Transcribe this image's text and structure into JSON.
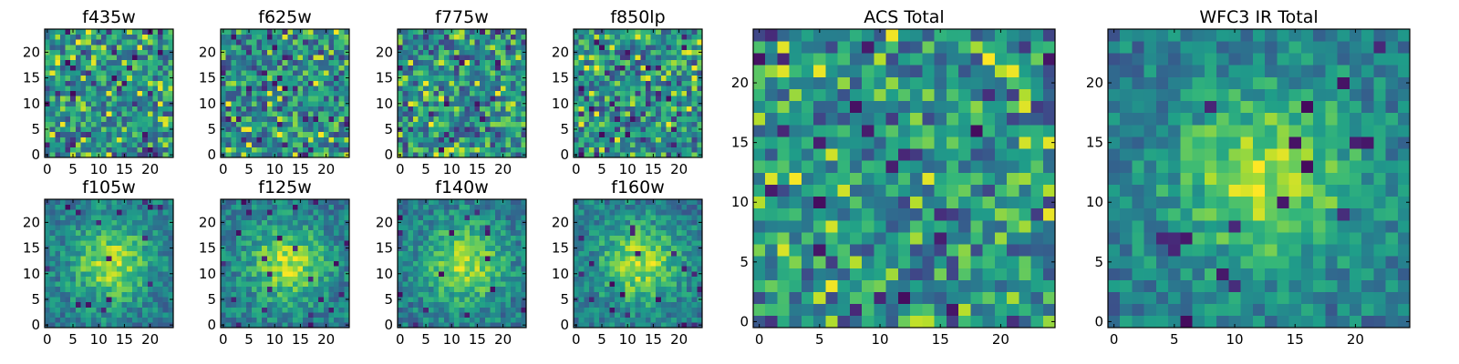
{
  "figure": {
    "colormap": "viridis",
    "grid_size": 25
  },
  "chart_data": [
    {
      "type": "heatmap",
      "title": "f435w",
      "xticks": [
        "0",
        "5",
        "10",
        "15",
        "20"
      ],
      "yticks": [
        "0",
        "5",
        "10",
        "15",
        "20"
      ],
      "xlim": [
        0,
        24
      ],
      "ylim": [
        0,
        24
      ],
      "grid": false,
      "pattern": "noise",
      "seed": 11
    },
    {
      "type": "heatmap",
      "title": "f625w",
      "xticks": [
        "0",
        "5",
        "10",
        "15",
        "20"
      ],
      "yticks": [
        "0",
        "5",
        "10",
        "15",
        "20"
      ],
      "xlim": [
        0,
        24
      ],
      "ylim": [
        0,
        24
      ],
      "grid": false,
      "pattern": "noise",
      "seed": 23
    },
    {
      "type": "heatmap",
      "title": "f775w",
      "xticks": [
        "0",
        "5",
        "10",
        "15",
        "20"
      ],
      "yticks": [
        "0",
        "5",
        "10",
        "15",
        "20"
      ],
      "xlim": [
        0,
        24
      ],
      "ylim": [
        0,
        24
      ],
      "grid": false,
      "pattern": "noise",
      "seed": 37
    },
    {
      "type": "heatmap",
      "title": "f850lp",
      "xticks": [
        "0",
        "5",
        "10",
        "15",
        "20"
      ],
      "yticks": [
        "0",
        "5",
        "10",
        "15",
        "20"
      ],
      "xlim": [
        0,
        24
      ],
      "ylim": [
        0,
        24
      ],
      "grid": false,
      "pattern": "noise",
      "seed": 41
    },
    {
      "type": "heatmap",
      "title": "f105w",
      "xticks": [
        "0",
        "5",
        "10",
        "15",
        "20"
      ],
      "yticks": [
        "0",
        "5",
        "10",
        "15",
        "20"
      ],
      "xlim": [
        0,
        24
      ],
      "ylim": [
        0,
        24
      ],
      "grid": false,
      "pattern": "source",
      "seed": 53
    },
    {
      "type": "heatmap",
      "title": "f125w",
      "xticks": [
        "0",
        "5",
        "10",
        "15",
        "20"
      ],
      "yticks": [
        "0",
        "5",
        "10",
        "15",
        "20"
      ],
      "xlim": [
        0,
        24
      ],
      "ylim": [
        0,
        24
      ],
      "grid": false,
      "pattern": "source",
      "seed": 67
    },
    {
      "type": "heatmap",
      "title": "f140w",
      "xticks": [
        "0",
        "5",
        "10",
        "15",
        "20"
      ],
      "yticks": [
        "0",
        "5",
        "10",
        "15",
        "20"
      ],
      "xlim": [
        0,
        24
      ],
      "ylim": [
        0,
        24
      ],
      "grid": false,
      "pattern": "source",
      "seed": 79
    },
    {
      "type": "heatmap",
      "title": "f160w",
      "xticks": [
        "0",
        "5",
        "10",
        "15",
        "20"
      ],
      "yticks": [
        "0",
        "5",
        "10",
        "15",
        "20"
      ],
      "xlim": [
        0,
        24
      ],
      "ylim": [
        0,
        24
      ],
      "grid": false,
      "pattern": "source",
      "seed": 83
    },
    {
      "type": "heatmap",
      "title": "ACS Total",
      "xticks": [
        "0",
        "5",
        "10",
        "15",
        "20"
      ],
      "yticks": [
        "0",
        "5",
        "10",
        "15",
        "20"
      ],
      "xlim": [
        0,
        24
      ],
      "ylim": [
        0,
        24
      ],
      "grid": false,
      "pattern": "noise",
      "seed": 97
    },
    {
      "type": "heatmap",
      "title": "WFC3 IR Total",
      "xticks": [
        "0",
        "5",
        "10",
        "15",
        "20"
      ],
      "yticks": [
        "0",
        "5",
        "10",
        "15",
        "20"
      ],
      "xlim": [
        0,
        24
      ],
      "ylim": [
        0,
        24
      ],
      "grid": false,
      "pattern": "source",
      "seed": 101
    }
  ]
}
